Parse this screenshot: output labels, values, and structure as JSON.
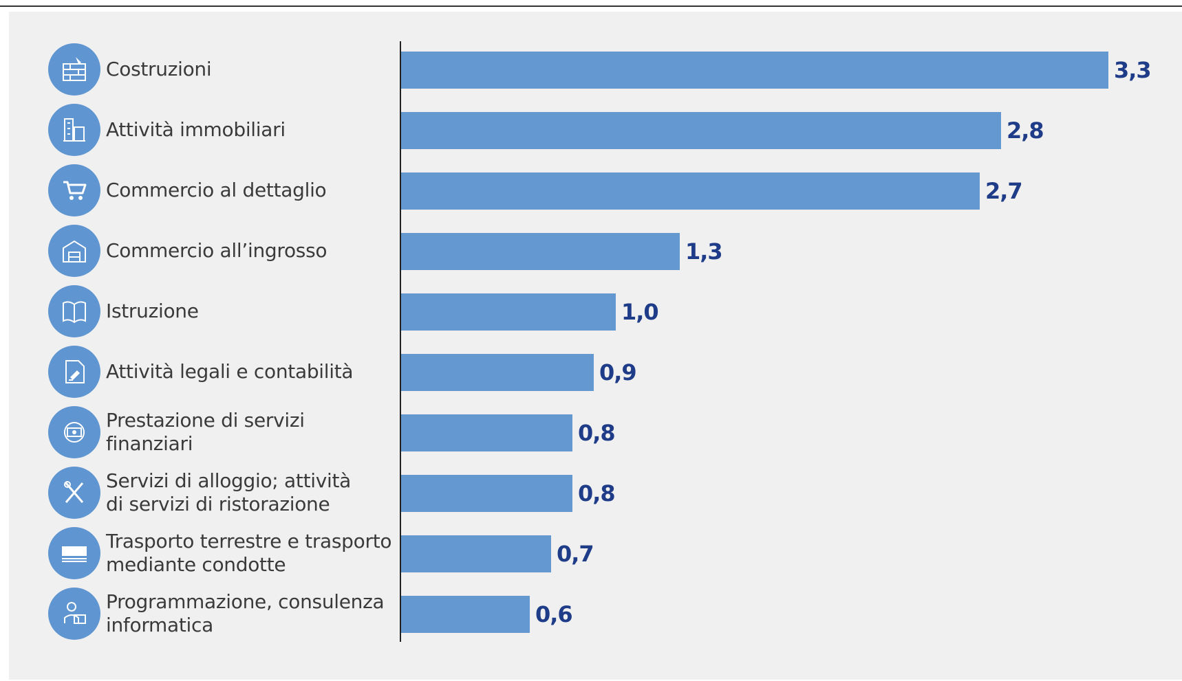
{
  "chart_data": {
    "type": "bar",
    "orientation": "horizontal",
    "categories": [
      "Costruzioni",
      "Attività immobiliari",
      "Commercio al dettaglio",
      "Commercio all’ingrosso",
      "Istruzione",
      "Attività legali e contabilità",
      "Prestazione di servizi finanziari",
      "Servizi di alloggio; attività di servizi di ristorazione",
      "Trasporto terrestre e trasporto mediante condotte",
      "Programmazione, consulenza informatica"
    ],
    "label_lines": [
      [
        "Costruzioni"
      ],
      [
        "Attività immobiliari"
      ],
      [
        "Commercio al dettaglio"
      ],
      [
        "Commercio all’ingrosso"
      ],
      [
        "Istruzione"
      ],
      [
        "Attività legali e contabilità"
      ],
      [
        "Prestazione di servizi finanziari"
      ],
      [
        "Servizi di alloggio; attività",
        "di servizi di ristorazione"
      ],
      [
        "Trasporto terrestre e trasporto",
        "mediante condotte"
      ],
      [
        "Programmazione, consulenza",
        "informatica"
      ]
    ],
    "values": [
      3.3,
      2.8,
      2.7,
      1.3,
      1.0,
      0.9,
      0.8,
      0.8,
      0.7,
      0.6
    ],
    "value_labels": [
      "3,3",
      "2,8",
      "2,7",
      "1,3",
      "1,0",
      "0,9",
      "0,8",
      "0,8",
      "0,7",
      "0,6"
    ],
    "icons": [
      "construction-icon",
      "buildings-icon",
      "shopping-cart-icon",
      "warehouse-icon",
      "book-icon",
      "legal-document-icon",
      "finance-icon",
      "fork-knife-icon",
      "truck-icon",
      "developer-icon"
    ],
    "xlim": [
      0,
      3.3
    ],
    "grid": false,
    "legend": "none",
    "bar_color": "#6398d1",
    "value_color": "#1f3c88",
    "icon_color": "#5f95d0"
  }
}
